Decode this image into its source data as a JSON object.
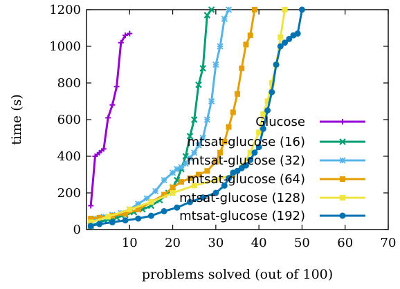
{
  "chart_data": {
    "type": "line",
    "xlabel": "problems solved (out of 100)",
    "ylabel": "time (s)",
    "xlim": [
      0,
      70
    ],
    "ylim": [
      0,
      1200
    ],
    "xticks": [
      "10",
      "20",
      "30",
      "40",
      "50",
      "60",
      "70"
    ],
    "yticks": [
      "0",
      "200",
      "400",
      "600",
      "800",
      "1000",
      "1200"
    ],
    "grid": false,
    "legend_position": "bottom-right",
    "series": [
      {
        "name": "Glucose",
        "color": "#9400D3",
        "marker": "plus",
        "x": [
          1,
          2,
          3,
          4,
          5,
          6,
          7,
          8,
          9,
          10
        ],
        "y": [
          130,
          400,
          420,
          440,
          610,
          680,
          780,
          1020,
          1060,
          1070
        ]
      },
      {
        "name": "mtsat-glucose (16)",
        "color": "#009E73",
        "marker": "x",
        "x": [
          1,
          3,
          5,
          7,
          9,
          11,
          13,
          15,
          17,
          19,
          20,
          21,
          22,
          23,
          24,
          25,
          26,
          27,
          28,
          29
        ],
        "y": [
          20,
          40,
          55,
          65,
          80,
          95,
          110,
          130,
          160,
          200,
          230,
          270,
          330,
          400,
          510,
          600,
          790,
          880,
          1170,
          1200
        ]
      },
      {
        "name": "mtsat-glucose (32)",
        "color": "#56B4E9",
        "marker": "star",
        "x": [
          1,
          2,
          4,
          6,
          8,
          10,
          12,
          14,
          16,
          18,
          20,
          21,
          22,
          23,
          24,
          25,
          26,
          27,
          28,
          29,
          30,
          31,
          32,
          33
        ],
        "y": [
          50,
          60,
          70,
          80,
          90,
          110,
          140,
          170,
          210,
          270,
          310,
          330,
          340,
          360,
          390,
          420,
          460,
          500,
          600,
          700,
          900,
          1000,
          1150,
          1200
        ]
      },
      {
        "name": "mtsat-glucose (64)",
        "color": "#E69F00",
        "marker": "square",
        "x": [
          1,
          3,
          6,
          9,
          12,
          15,
          18,
          20,
          22,
          24,
          26,
          28,
          30,
          31,
          32,
          33,
          34,
          35,
          36,
          37,
          38,
          39
        ],
        "y": [
          60,
          65,
          75,
          85,
          110,
          150,
          190,
          230,
          260,
          280,
          300,
          320,
          370,
          420,
          480,
          560,
          640,
          740,
          880,
          1010,
          1060,
          1200
        ]
      },
      {
        "name": "mtsat-glucose (128)",
        "color": "#F0E442",
        "marker": "square",
        "x": [
          1,
          5,
          10,
          15,
          20,
          25,
          30,
          34,
          36,
          38,
          40,
          41,
          42,
          43,
          44,
          45,
          46
        ],
        "y": [
          40,
          70,
          110,
          150,
          200,
          240,
          270,
          300,
          340,
          420,
          530,
          630,
          700,
          800,
          900,
          1050,
          1200
        ]
      },
      {
        "name": "mtsat-glucose (192)",
        "color": "#0072B2",
        "marker": "circle",
        "x": [
          1,
          3,
          6,
          9,
          12,
          15,
          18,
          21,
          24,
          27,
          30,
          32,
          33,
          34,
          35,
          36,
          37,
          38,
          39,
          40,
          41,
          42,
          43,
          44,
          45,
          46,
          47,
          48,
          49,
          50
        ],
        "y": [
          20,
          30,
          40,
          50,
          60,
          75,
          100,
          120,
          150,
          175,
          200,
          240,
          280,
          310,
          320,
          335,
          350,
          380,
          420,
          450,
          550,
          650,
          750,
          900,
          1000,
          1020,
          1040,
          1060,
          1070,
          1200
        ]
      }
    ]
  }
}
